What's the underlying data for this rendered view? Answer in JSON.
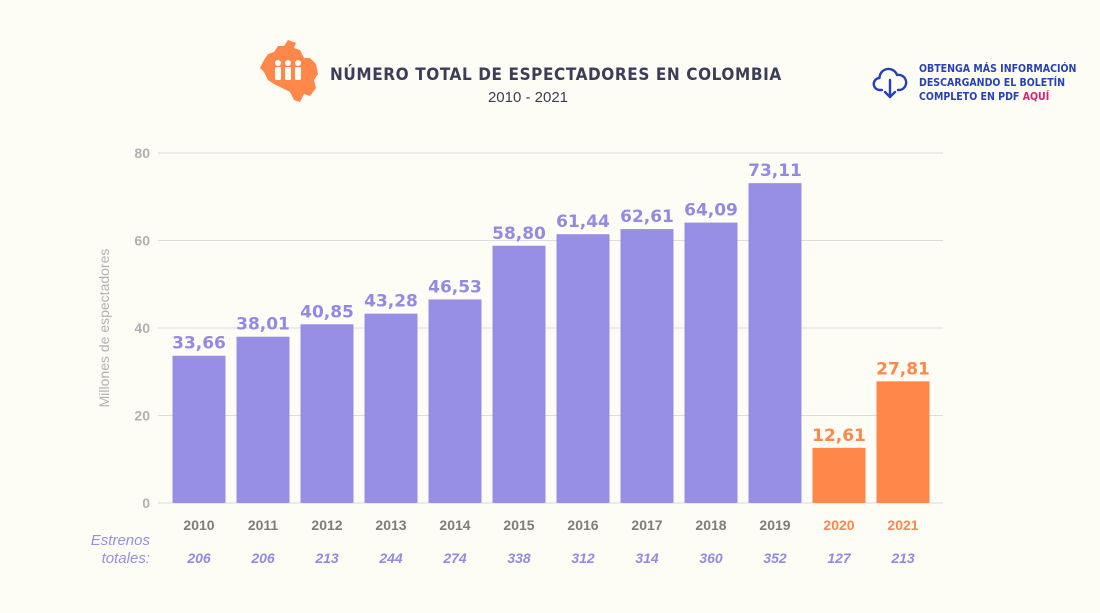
{
  "header": {
    "title": "NÚMERO TOTAL DE ESPECTADORES EN COLOMBIA",
    "subtitle": "2010 - 2021"
  },
  "download": {
    "line1": "OBTENGA MÁS INFORMACIÓN",
    "line2": "DESCARGANDO EL BOLETÍN",
    "line3_prefix": "COMPLETO EN PDF ",
    "line3_link": "AQUÍ"
  },
  "icons": {
    "logo": "colombia-map-people-icon",
    "download": "cloud-download-icon"
  },
  "colors": {
    "bar_default": "#978fe6",
    "bar_highlight": "#ff874a",
    "label_default": "#928ae3",
    "label_highlight": "#ff874a",
    "axis_text": "#b1b1b1",
    "year_text": "#7d7d7d",
    "grid": "#dcdcdc",
    "link": "#2541b8",
    "link_highlight": "#e0206e"
  },
  "estrenos": {
    "label_line1": "Estrenos",
    "label_line2": "totales:"
  },
  "chart_data": {
    "type": "bar",
    "title": "NÚMERO TOTAL DE ESPECTADORES EN COLOMBIA",
    "subtitle": "2010 - 2021",
    "xlabel": "",
    "ylabel": "Millones de espectadores",
    "ylim": [
      0,
      80
    ],
    "yticks": [
      0,
      20,
      40,
      60,
      80
    ],
    "grid": true,
    "categories": [
      "2010",
      "2011",
      "2012",
      "2013",
      "2014",
      "2015",
      "2016",
      "2017",
      "2018",
      "2019",
      "2020",
      "2021"
    ],
    "values": [
      33.66,
      38.01,
      40.85,
      43.28,
      46.53,
      58.8,
      61.44,
      62.61,
      64.09,
      73.11,
      12.61,
      27.81
    ],
    "value_labels": [
      "33,66",
      "38,01",
      "40,85",
      "43,28",
      "46,53",
      "58,80",
      "61,44",
      "62,61",
      "64,09",
      "73,11",
      "12,61",
      "27,81"
    ],
    "highlighted_categories": [
      "2020",
      "2021"
    ],
    "estrenos_totales": [
      "206",
      "206",
      "213",
      "244",
      "274",
      "338",
      "312",
      "314",
      "360",
      "352",
      "127",
      "213"
    ]
  }
}
